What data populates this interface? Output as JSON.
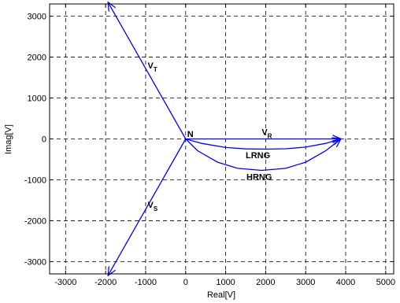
{
  "chart_data": {
    "type": "line",
    "title": "",
    "xlabel": "Real[V]",
    "ylabel": "Imag[V]",
    "xlim": [
      -3400,
      5200
    ],
    "ylim": [
      -3300,
      3300
    ],
    "xticks": [
      -3000,
      -2000,
      -1000,
      0,
      1000,
      2000,
      3000,
      4000,
      5000
    ],
    "yticks": [
      -3000,
      -2000,
      -1000,
      0,
      1000,
      2000,
      3000
    ],
    "grid": true,
    "line_color": "#0000ff",
    "series": [
      {
        "x": [
          0,
          -1940
        ],
        "y": [
          0,
          3340
        ],
        "arrow": "end"
      },
      {
        "x": [
          0,
          -1940
        ],
        "y": [
          0,
          -3340
        ],
        "arrow": "end"
      },
      {
        "x": [
          0,
          3880
        ],
        "y": [
          0,
          0
        ],
        "arrow": "end"
      },
      {
        "x": [
          0,
          400,
          1000,
          1500,
          2000,
          2500,
          3000,
          3500,
          3880
        ],
        "y": [
          0,
          -110,
          -210,
          -245,
          -250,
          -240,
          -200,
          -110,
          0
        ],
        "arrow": "end"
      },
      {
        "x": [
          0,
          300,
          800,
          1300,
          1900,
          2500,
          3000,
          3500,
          3880
        ],
        "y": [
          0,
          -290,
          -570,
          -720,
          -770,
          -720,
          -570,
          -290,
          0
        ],
        "arrow": "end"
      }
    ],
    "annotations": [
      {
        "text": "V",
        "sub": "T",
        "x": -950,
        "y": 1720
      },
      {
        "text": "V",
        "sub": "S",
        "x": -950,
        "y": -1680
      },
      {
        "text": "V",
        "sub": "R",
        "x": 1900,
        "y": 100
      },
      {
        "text": "N",
        "x": 40,
        "y": 50
      },
      {
        "text": "LRNG",
        "x": 1500,
        "y": -470
      },
      {
        "text": "HRNG",
        "x": 1520,
        "y": -1000
      }
    ]
  }
}
